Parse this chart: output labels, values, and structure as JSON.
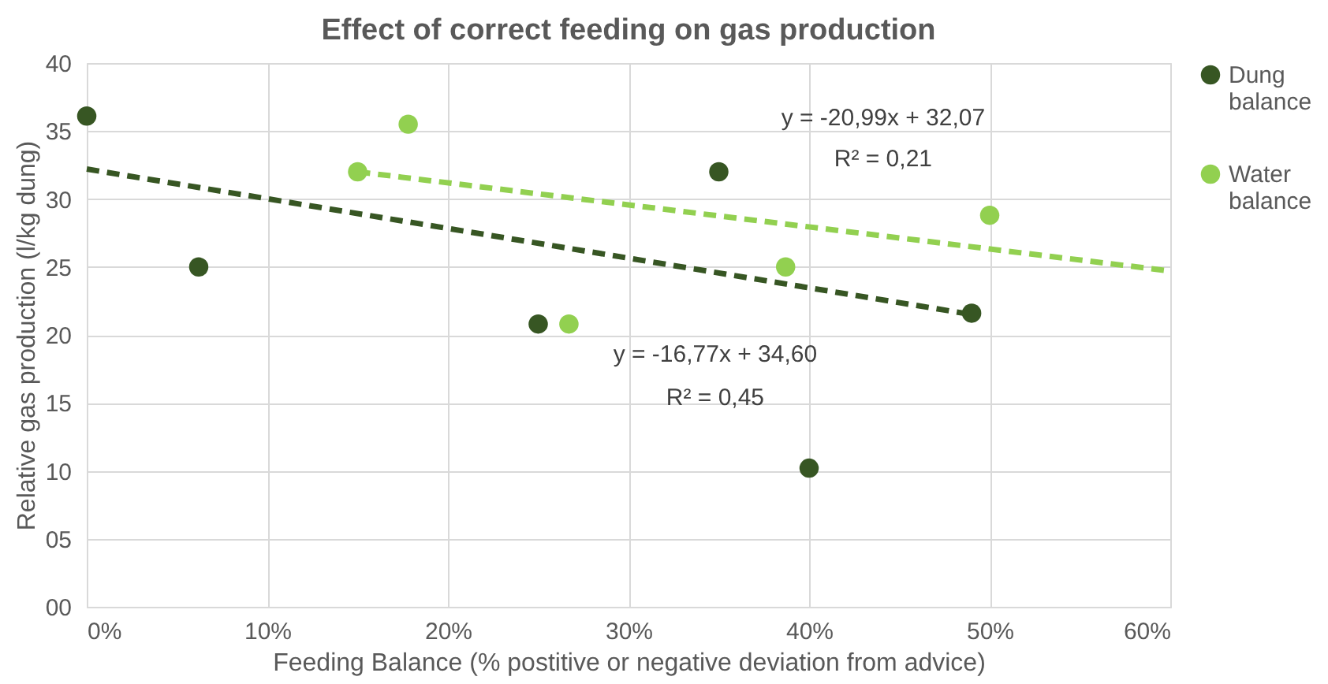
{
  "chart_data": {
    "type": "scatter",
    "title": "Effect of correct feeding on gas production",
    "xlabel": "Feeding Balance (% postitive or negative deviation from advice)",
    "ylabel": "Relative gas production (l/kg dung)",
    "xlim": [
      0,
      0.6
    ],
    "xticks": [
      {
        "value": 0,
        "label": "0%"
      },
      {
        "value": 0.1,
        "label": "10%"
      },
      {
        "value": 0.2,
        "label": "20%"
      },
      {
        "value": 0.3,
        "label": "30%"
      },
      {
        "value": 0.4,
        "label": "40%"
      },
      {
        "value": 0.5,
        "label": "50%"
      },
      {
        "value": 0.6,
        "label": "60%"
      }
    ],
    "ylim": [
      0,
      40
    ],
    "yticks": [
      {
        "value": 0,
        "label": "00"
      },
      {
        "value": 5,
        "label": "05"
      },
      10,
      15,
      20,
      25,
      30,
      35,
      40
    ],
    "grid": true,
    "legend": "right",
    "series": [
      {
        "name": "Dung balance",
        "marker": "circle",
        "color": "#375623",
        "x": [
          0,
          0.062,
          0.25,
          0.35,
          0.4,
          0.49
        ],
        "values": [
          36.1,
          25.0,
          20.8,
          32.0,
          10.2,
          21.6
        ]
      },
      {
        "name": "Water balance",
        "marker": "circle",
        "color": "#92d050",
        "x": [
          0.15,
          0.178,
          0.267,
          0.387,
          0.5
        ],
        "values": [
          32.0,
          35.5,
          20.8,
          25.0,
          28.8
        ]
      },
      {
        "type": "line",
        "line_style": "dashed",
        "color": "#375623",
        "x": [
          0,
          0.49
        ],
        "values": [
          32.2,
          21.5
        ]
      },
      {
        "type": "line",
        "line_style": "dashed",
        "color": "#92d050",
        "x": [
          0.15,
          0.6
        ],
        "values": [
          32.0,
          24.7
        ]
      }
    ],
    "annotations": [
      "y = -20,99x + 32,07",
      "R² = 0,21",
      "y = -16,77x + 34,60",
      "R² = 0,45"
    ]
  }
}
